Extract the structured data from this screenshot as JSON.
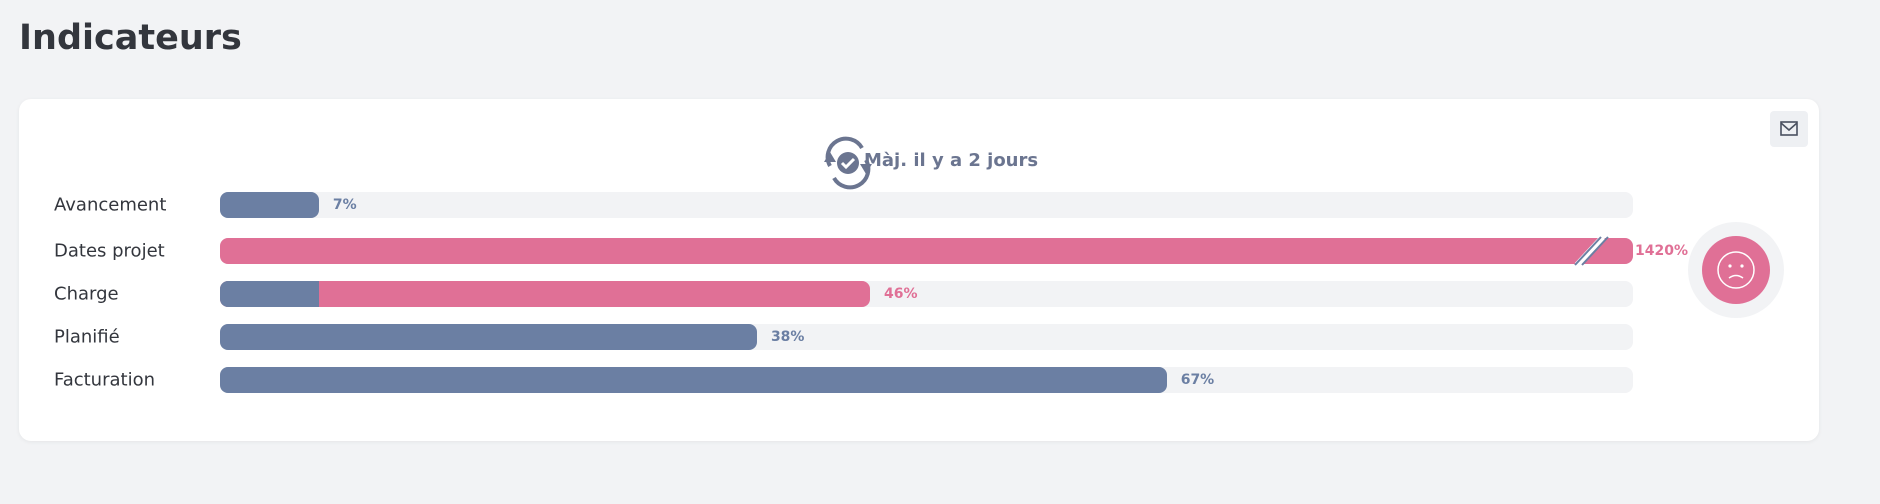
{
  "header": {
    "title": "Indicateurs"
  },
  "card": {
    "updated": "Màj. il y a 2 jours"
  },
  "chart_data": {
    "type": "bar",
    "categories": [
      "Avancement",
      "Dates projet",
      "Charge",
      "Planifié",
      "Facturation"
    ],
    "values": [
      7,
      1420,
      46,
      38,
      67
    ],
    "value_labels": [
      "7%",
      "1420%",
      "46%",
      "38%",
      "67%"
    ],
    "colors": [
      "#6b7fa3",
      "#e07096",
      "#e07096",
      "#6b7fa3",
      "#6b7fa3"
    ],
    "base_values": [
      null,
      null,
      7,
      null,
      null
    ],
    "base_color": "#6b7fa3",
    "xlim": [
      0,
      100
    ]
  }
}
